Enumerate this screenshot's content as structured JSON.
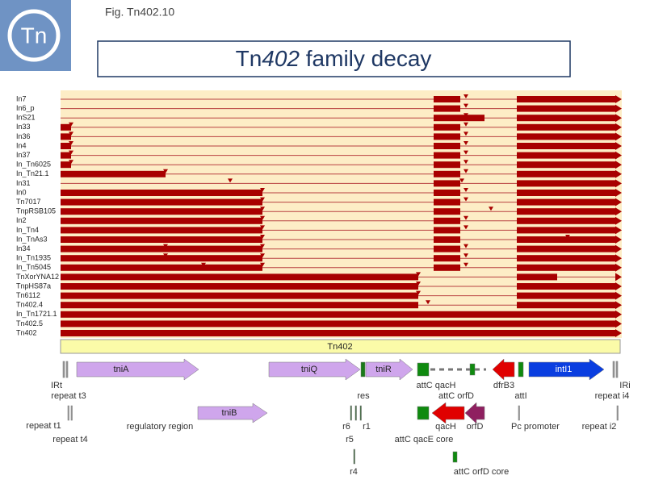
{
  "fig_label": "Fig. Tn402.10",
  "logo": "Tn",
  "title": {
    "prefix": "Tn",
    "italic": "402",
    "suffix": " family decay"
  },
  "rows": [
    "In7",
    "In6_p",
    "InS21",
    "In33",
    "In36",
    "In4",
    "In37",
    "In_Tn6025",
    "In_Tn21.1",
    "In31",
    "In0",
    "Tn7017",
    "TnpRSB105",
    "In2",
    "In_Tn4",
    "In_TnAs3",
    "In34",
    "In_Tn1935",
    "In_Tn5045",
    "TnXorYNA12",
    "TnpHS87a",
    "Tn6112",
    "Tn402.4",
    "In_Tn1721.1",
    "Tn402.5",
    "Tn402"
  ],
  "map": {
    "element": "Tn402",
    "labels": {
      "tniA": "tniA",
      "tniQ": "tniQ",
      "tniR": "tniR",
      "tniB": "tniB",
      "intI1": "intI1",
      "irt": "IRt",
      "repeat_t3": "repeat t3",
      "res": "res",
      "attc_qach": "attC qacH",
      "attc_orfd": "attC orfD",
      "dfrb3": "dfrB3",
      "atti": "attI",
      "iri": "IRi",
      "repeat_i4": "repeat i4",
      "repeat_t1": "repeat t1",
      "repeat_t4": "repeat t4",
      "regulatory": "regulatory region",
      "r6": "r6",
      "r1": "r1",
      "r5": "r5",
      "qach": "qacH",
      "orfd": "orfD",
      "pc": "Pc promoter",
      "repeat_i2": "repeat i2",
      "attc_qace_core": "attC qacE core",
      "r4": "r4",
      "attc_orfd_core": "attC orfD core"
    }
  }
}
